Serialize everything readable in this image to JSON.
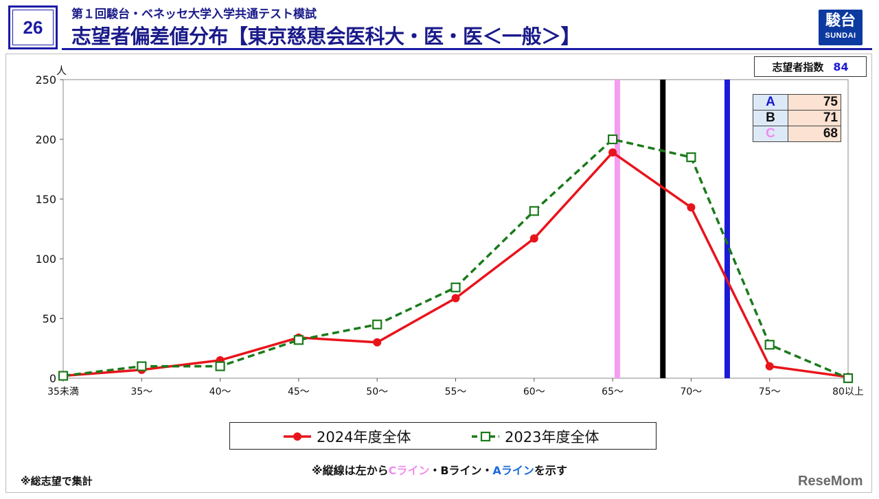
{
  "header": {
    "slide_number": "26",
    "subtitle": "第１回駿台・ベネッセ大学入学共通テスト模試",
    "title": "志望者偏差値分布【東京慈恵会医科大・医・医＜一般＞】",
    "logo_top": "駿台",
    "logo_bottom": "SUNDAI"
  },
  "applicant_index": {
    "label": "志望者指数",
    "value": "84"
  },
  "line_table": [
    {
      "label": "A",
      "value": "75",
      "color": "#1a1ad0"
    },
    {
      "label": "B",
      "value": "71",
      "color": "#111111"
    },
    {
      "label": "C",
      "value": "68",
      "color": "#f08cf0"
    }
  ],
  "chart_data": {
    "type": "line",
    "y_unit": "人",
    "ylim": [
      0,
      250
    ],
    "yticks": [
      0,
      50,
      100,
      150,
      200,
      250
    ],
    "categories": [
      "35未満",
      "35～",
      "40～",
      "45～",
      "50～",
      "55～",
      "60～",
      "65～",
      "70～",
      "75～",
      "80以上"
    ],
    "series": [
      {
        "name": "2024年度全体",
        "color": "#e8141c",
        "dash": "solid",
        "marker": "circle",
        "values": [
          2,
          7,
          15,
          34,
          30,
          67,
          117,
          189,
          143,
          10,
          1
        ]
      },
      {
        "name": "2023年度全体",
        "color": "#1a7a1a",
        "dash": "dashed",
        "marker": "square",
        "values": [
          2,
          10,
          10,
          32,
          45,
          76,
          140,
          200,
          185,
          28,
          0
        ]
      }
    ],
    "vertical_lines": [
      {
        "label": "C",
        "position": 67.8,
        "color": "#f59cf3"
      },
      {
        "label": "B",
        "position": 70.7,
        "color": "#000000"
      },
      {
        "label": "A",
        "position": 74.8,
        "color": "#1a1ad8"
      }
    ],
    "grid": false,
    "legend_position": "bottom"
  },
  "notes": {
    "prefix": "※縦線は左から",
    "c_line": "Cライン",
    "sep1": "・Bライン・",
    "a_line": "Aライン",
    "suffix": "を示す",
    "footnote": "※総志望で集計"
  },
  "watermark": "ReseMom"
}
